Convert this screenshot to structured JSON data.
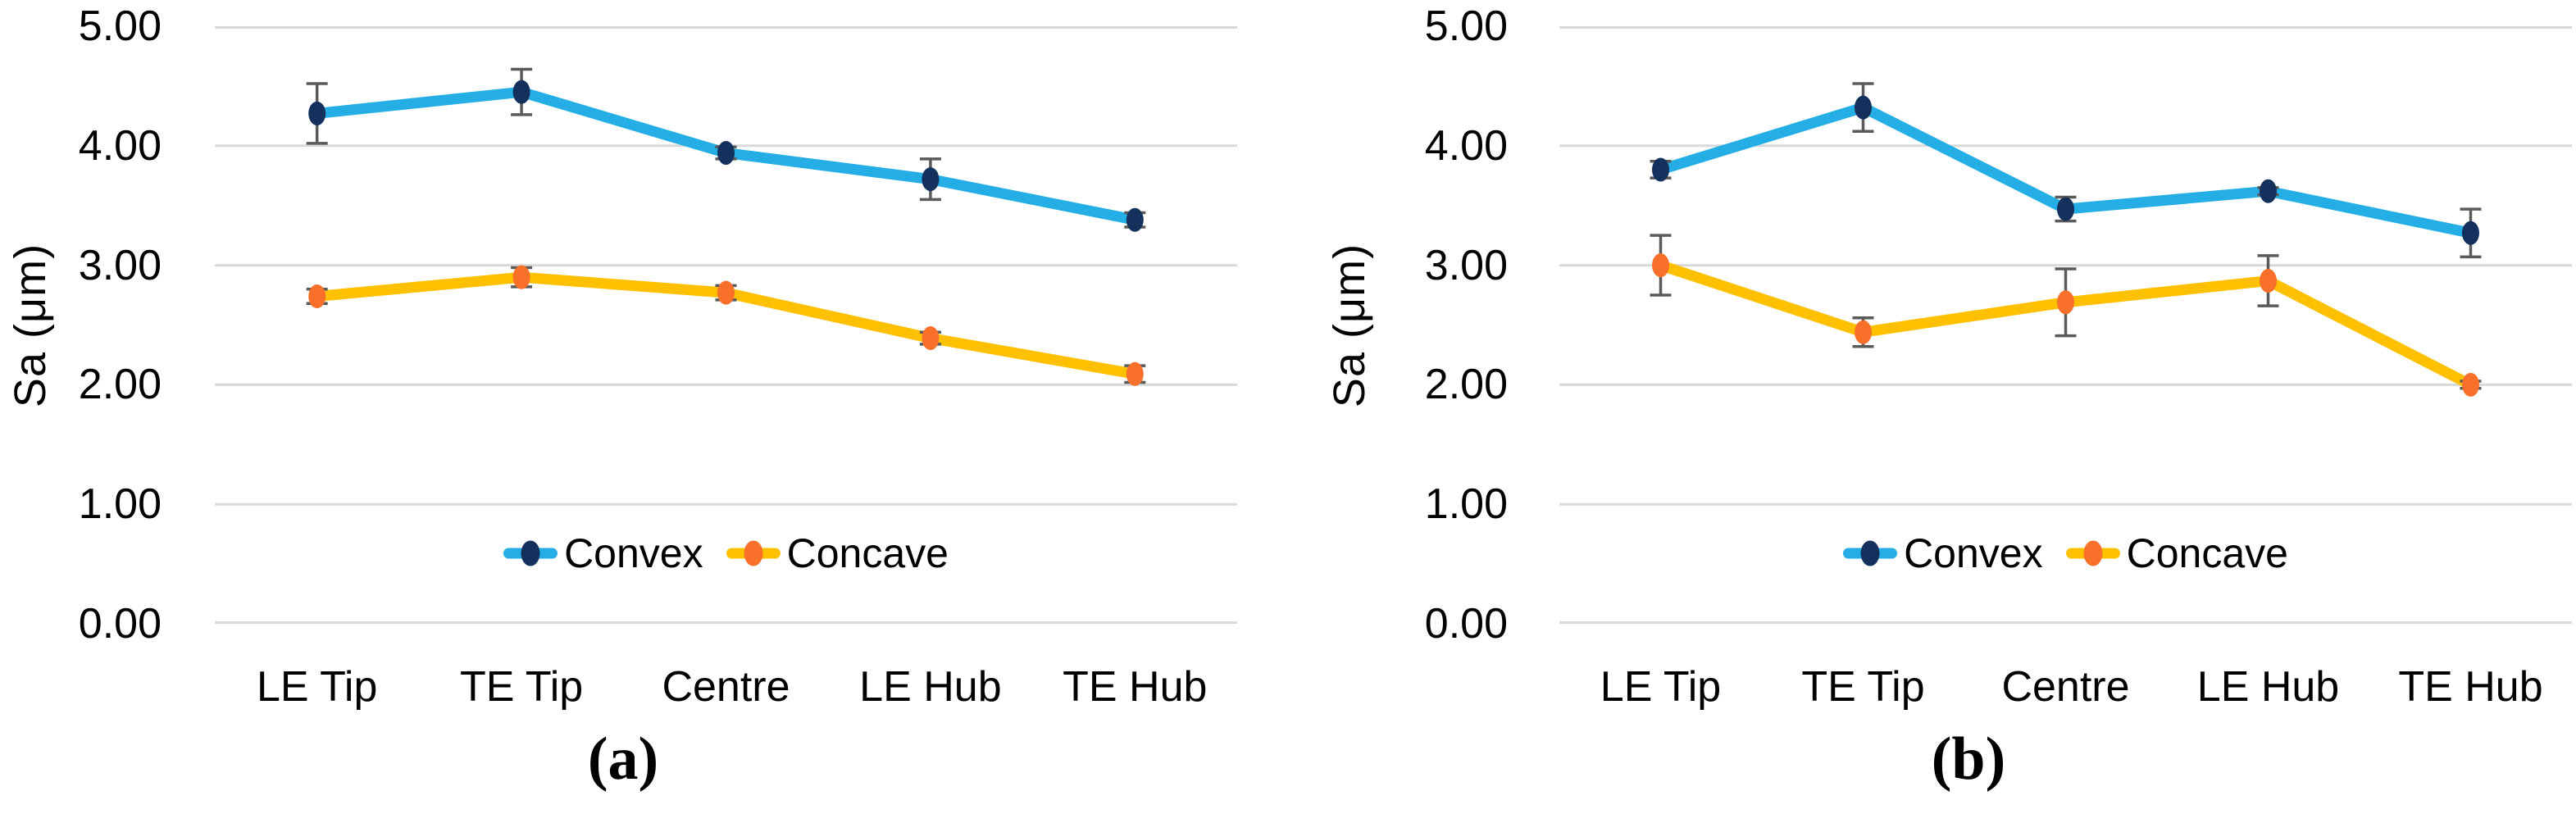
{
  "figure": {
    "description": "Two-panel line chart figure comparing surface roughness Sa on convex and concave blade surfaces at five blade locations",
    "background_color": "#FFFFFF"
  },
  "colors": {
    "gridline": "#D9D9D9",
    "error_bar": "#5A5A5A",
    "text": "#000000",
    "background": "#FFFFFF"
  },
  "chart_data": [
    {
      "type": "line",
      "panel_label": "(a)",
      "title": "",
      "xlabel": "",
      "ylabel": "Sa (μm)",
      "ylim": [
        0,
        5
      ],
      "ytick_labels": [
        "0.00",
        "1.00",
        "2.00",
        "3.00",
        "4.00",
        "5.00"
      ],
      "grid": true,
      "legend_position": "inside-bottom-center",
      "categories": [
        "LE Tip",
        "TE Tip",
        "Centre",
        "LE Hub",
        "TE Hub"
      ],
      "series": [
        {
          "name": "Convex",
          "values": [
            4.27,
            4.45,
            3.94,
            3.72,
            3.38
          ],
          "error": [
            0.25,
            0.19,
            0.05,
            0.17,
            0.06
          ],
          "line_color": "#25AEE5",
          "marker_color": "#14305C"
        },
        {
          "name": "Concave",
          "values": [
            2.74,
            2.9,
            2.77,
            2.39,
            2.09
          ],
          "error": [
            0.06,
            0.08,
            0.06,
            0.05,
            0.07
          ],
          "line_color": "#FFC000",
          "marker_color": "#F8702A"
        }
      ]
    },
    {
      "type": "line",
      "panel_label": "(b)",
      "title": "",
      "xlabel": "",
      "ylabel": "Sa (μm)",
      "ylim": [
        0,
        5
      ],
      "ytick_labels": [
        "0.00",
        "1.00",
        "2.00",
        "3.00",
        "4.00",
        "5.00"
      ],
      "grid": true,
      "legend_position": "inside-bottom-center",
      "categories": [
        "LE Tip",
        "TE Tip",
        "Centre",
        "LE Hub",
        "TE Hub"
      ],
      "series": [
        {
          "name": "Convex",
          "values": [
            3.8,
            4.32,
            3.47,
            3.62,
            3.27
          ],
          "error": [
            0.07,
            0.2,
            0.1,
            0.03,
            0.2
          ],
          "line_color": "#25AEE5",
          "marker_color": "#14305C"
        },
        {
          "name": "Concave",
          "values": [
            3.0,
            2.44,
            2.69,
            2.87,
            2.0
          ],
          "error": [
            0.25,
            0.12,
            0.28,
            0.21,
            0.03
          ],
          "line_color": "#FFC000",
          "marker_color": "#F8702A"
        }
      ]
    }
  ]
}
